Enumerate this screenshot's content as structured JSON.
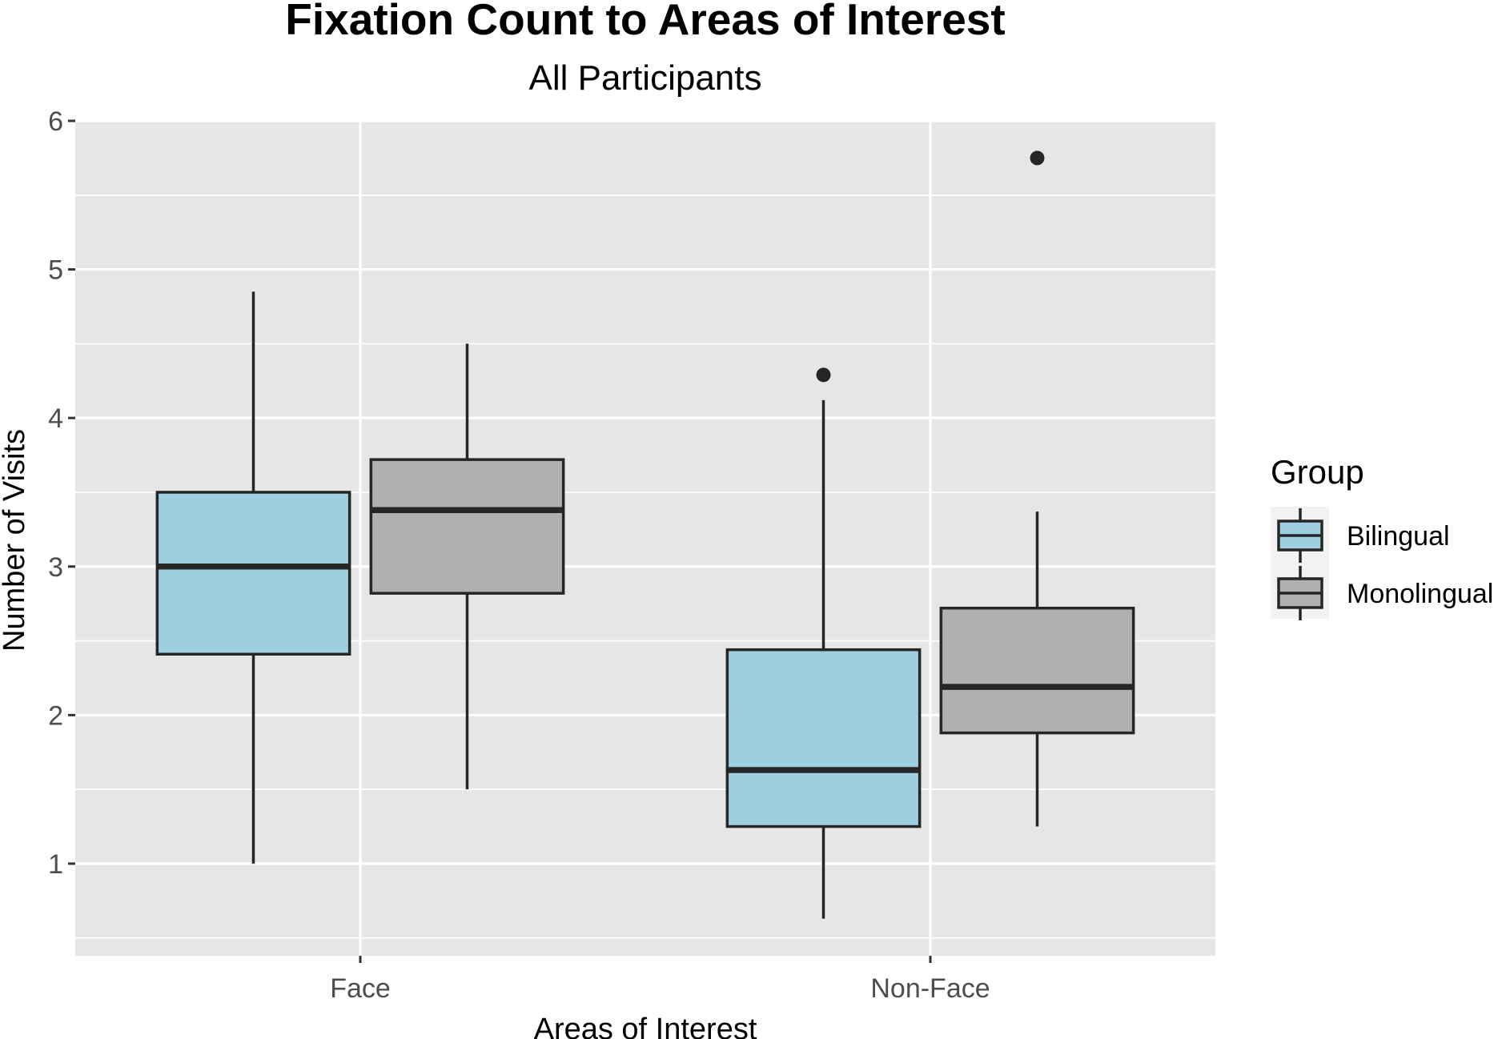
{
  "chart_data": {
    "type": "boxplot",
    "title": "Fixation Count to Areas of Interest",
    "subtitle": "All Participants",
    "xlabel": "Areas of Interest",
    "ylabel": "Number of Visits",
    "categories": [
      "Face",
      "Non-Face"
    ],
    "ylim": [
      0.38,
      6
    ],
    "yticks": [
      1,
      2,
      3,
      4,
      5,
      6
    ],
    "grid": true,
    "legend": {
      "title": "Group",
      "position": "right",
      "entries": [
        "Bilingual",
        "Monolingual"
      ]
    },
    "colors": {
      "Bilingual": "#9ecfe0",
      "Monolingual": "#b0b0b0",
      "panel": "#e6e6e6",
      "grid": "#ffffff",
      "outline": "#262626"
    },
    "series": [
      {
        "name": "Bilingual",
        "boxes": [
          {
            "category": "Face",
            "whisker_low": 1.0,
            "q1": 2.41,
            "median": 3.0,
            "q3": 3.5,
            "whisker_high": 4.85,
            "outliers": []
          },
          {
            "category": "Non-Face",
            "whisker_low": 0.63,
            "q1": 1.25,
            "median": 1.63,
            "q3": 2.44,
            "whisker_high": 4.12,
            "outliers": [
              4.29
            ]
          }
        ]
      },
      {
        "name": "Monolingual",
        "boxes": [
          {
            "category": "Face",
            "whisker_low": 1.5,
            "q1": 2.82,
            "median": 3.38,
            "q3": 3.72,
            "whisker_high": 4.5,
            "outliers": []
          },
          {
            "category": "Non-Face",
            "whisker_low": 1.25,
            "q1": 1.88,
            "median": 2.19,
            "q3": 2.72,
            "whisker_high": 3.37,
            "outliers": [
              5.75
            ]
          }
        ]
      }
    ]
  }
}
